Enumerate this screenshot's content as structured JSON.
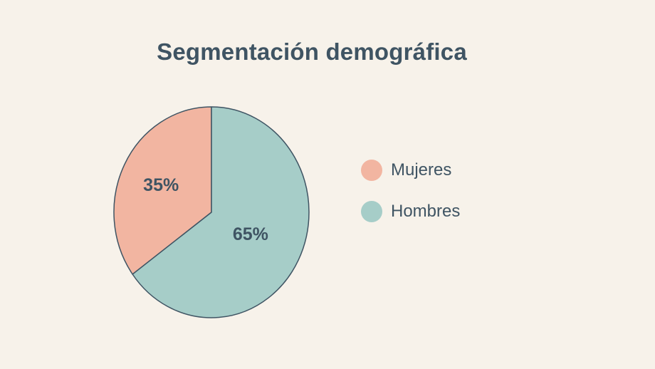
{
  "chart_data": {
    "type": "pie",
    "title": "Segmentación demográfica",
    "slices": [
      {
        "label": "Mujeres",
        "value": 35,
        "display": "35%",
        "color": "#f2b5a1"
      },
      {
        "label": "Hombres",
        "value": 65,
        "display": "65%",
        "color": "#a6cdc8"
      }
    ],
    "legend_position": "right"
  }
}
